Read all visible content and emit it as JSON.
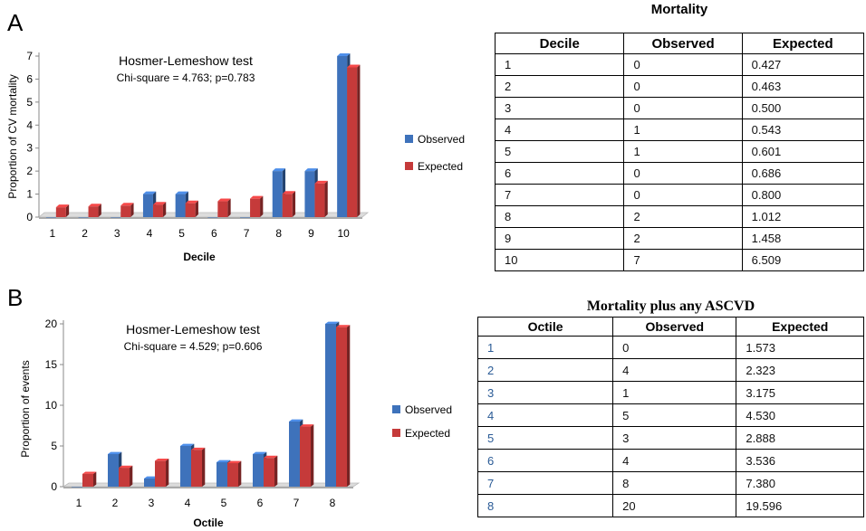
{
  "panels": {
    "a": {
      "letter": "A"
    },
    "b": {
      "letter": "B"
    }
  },
  "colors": {
    "observed": "#3e72bb",
    "expected": "#c53a3a",
    "floor": "#dcdcdc"
  },
  "table_a": {
    "title": "Mortality",
    "headers": [
      "Decile",
      "Observed",
      "Expected"
    ],
    "rows": [
      [
        "1",
        "0",
        "0.427"
      ],
      [
        "2",
        "0",
        "0.463"
      ],
      [
        "3",
        "0",
        "0.500"
      ],
      [
        "4",
        "1",
        "0.543"
      ],
      [
        "5",
        "1",
        "0.601"
      ],
      [
        "6",
        "0",
        "0.686"
      ],
      [
        "7",
        "0",
        "0.800"
      ],
      [
        "8",
        "2",
        "1.012"
      ],
      [
        "9",
        "2",
        "1.458"
      ],
      [
        "10",
        "7",
        "6.509"
      ]
    ]
  },
  "table_b": {
    "title": "Mortality plus any ASCVD",
    "headers": [
      "Octile",
      "Observed",
      "Expected"
    ],
    "rows": [
      [
        "1",
        "0",
        "1.573"
      ],
      [
        "2",
        "4",
        "2.323"
      ],
      [
        "3",
        "1",
        "3.175"
      ],
      [
        "4",
        "5",
        "4.530"
      ],
      [
        "5",
        "3",
        "2.888"
      ],
      [
        "6",
        "4",
        "3.536"
      ],
      [
        "7",
        "8",
        "7.380"
      ],
      [
        "8",
        "20",
        "19.596"
      ]
    ]
  },
  "chart_data": [
    {
      "type": "bar",
      "annotation_title": "Hosmer-Lemeshow test",
      "annotation_text": "Chi-square = 4.763; p=0.783",
      "xlabel": "Decile",
      "ylabel": "Proportion of CV mortality",
      "categories": [
        "1",
        "2",
        "3",
        "4",
        "5",
        "6",
        "7",
        "8",
        "9",
        "10"
      ],
      "ylim": [
        0,
        7
      ],
      "yticks": [
        0,
        1,
        2,
        3,
        4,
        5,
        6,
        7
      ],
      "legend_position": "right",
      "series": [
        {
          "name": "Observed",
          "values": [
            0,
            0,
            0,
            1,
            1,
            0,
            0,
            2,
            2,
            7
          ]
        },
        {
          "name": "Expected",
          "values": [
            0.427,
            0.463,
            0.5,
            0.543,
            0.601,
            0.686,
            0.8,
            1.012,
            1.458,
            6.509
          ]
        }
      ]
    },
    {
      "type": "bar",
      "annotation_title": "Hosmer-Lemeshow test",
      "annotation_text": "Chi-square = 4.529; p=0.606",
      "xlabel": "Octile",
      "ylabel": "Proportion of events",
      "categories": [
        "1",
        "2",
        "3",
        "4",
        "5",
        "6",
        "7",
        "8"
      ],
      "ylim": [
        0,
        20
      ],
      "yticks": [
        0,
        5,
        10,
        15,
        20
      ],
      "legend_position": "right",
      "series": [
        {
          "name": "Observed",
          "values": [
            0,
            4,
            1,
            5,
            3,
            4,
            8,
            20
          ]
        },
        {
          "name": "Expected",
          "values": [
            1.573,
            2.323,
            3.175,
            4.53,
            2.888,
            3.536,
            7.38,
            19.596
          ]
        }
      ]
    }
  ]
}
